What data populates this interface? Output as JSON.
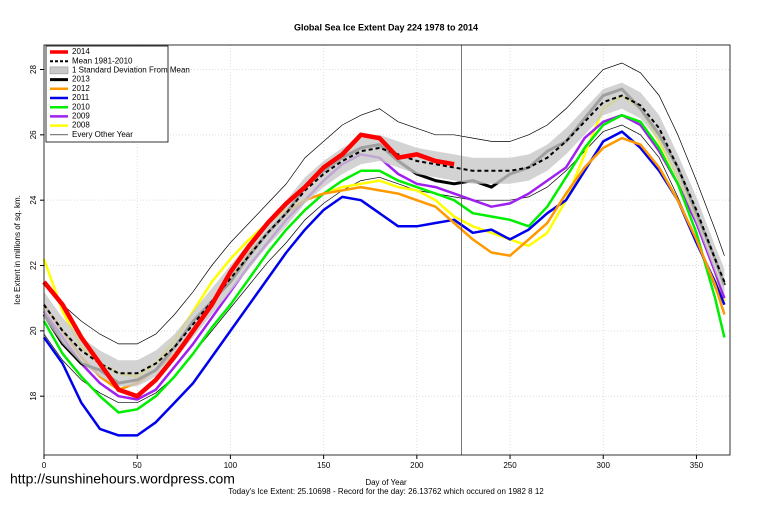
{
  "chart_data": {
    "type": "line",
    "title": "Global Sea Ice Extent Day 224 1978 to 2014",
    "x_label": "Day of Year",
    "y_label": "Ice Extent in millions of sq. km.",
    "caption": "Today's Ice Extent: 25.10698  - Record for the day: 26.13762 which occured on 1982 8 12",
    "watermark": "http://sunshinehours.wordpress.com",
    "marker_x": 224,
    "grid": true,
    "legend": "top-left",
    "xlim": [
      0,
      368
    ],
    "ylim": [
      16.2,
      28.75
    ],
    "xticks": [
      0,
      50,
      100,
      150,
      200,
      250,
      300,
      350
    ],
    "yticks": [
      18,
      20,
      22,
      24,
      26,
      28
    ],
    "x": [
      0,
      10,
      20,
      30,
      40,
      50,
      60,
      70,
      80,
      90,
      100,
      110,
      120,
      130,
      140,
      150,
      160,
      170,
      180,
      190,
      200,
      210,
      220,
      230,
      240,
      250,
      260,
      270,
      280,
      290,
      300,
      310,
      320,
      330,
      340,
      350,
      360,
      365
    ],
    "series": [
      {
        "name": "2014",
        "color": "#ff0000",
        "width": 4.5,
        "values": [
          21.5,
          20.8,
          19.8,
          19.0,
          18.2,
          18.0,
          18.5,
          19.2,
          20.0,
          20.8,
          21.8,
          22.6,
          23.3,
          23.9,
          24.4,
          25.0,
          25.4,
          26.0,
          25.9,
          25.3,
          25.4,
          25.2,
          25.1,
          null,
          null,
          null,
          null,
          null,
          null,
          null,
          null,
          null,
          null,
          null,
          null,
          null,
          null,
          null
        ]
      },
      {
        "name": "Mean 1981-2010",
        "color": "#000000",
        "width": 2,
        "dash": true,
        "values": [
          20.8,
          20.0,
          19.4,
          19.0,
          18.7,
          18.7,
          19.0,
          19.5,
          20.2,
          20.9,
          21.6,
          22.3,
          23.0,
          23.6,
          24.3,
          24.8,
          25.2,
          25.5,
          25.6,
          25.4,
          25.2,
          25.1,
          25.0,
          24.9,
          24.9,
          24.9,
          25.0,
          25.3,
          25.8,
          26.4,
          27.0,
          27.2,
          26.9,
          26.2,
          25.0,
          23.7,
          22.2,
          21.5
        ]
      },
      {
        "name": "1 Standard Deviation From Mean",
        "color": "#c8c8c8",
        "lower": [
          20.4,
          19.6,
          19.0,
          18.6,
          18.3,
          18.3,
          18.6,
          19.1,
          19.8,
          20.5,
          21.2,
          21.9,
          22.6,
          23.2,
          23.9,
          24.4,
          24.8,
          25.1,
          25.2,
          25.0,
          24.8,
          24.7,
          24.6,
          24.5,
          24.5,
          24.5,
          24.6,
          24.9,
          25.4,
          26.0,
          26.6,
          26.8,
          26.5,
          25.8,
          24.6,
          23.3,
          21.8,
          21.1
        ],
        "upper": [
          21.2,
          20.4,
          19.8,
          19.4,
          19.1,
          19.1,
          19.4,
          19.9,
          20.6,
          21.3,
          22.0,
          22.7,
          23.4,
          24.0,
          24.7,
          25.2,
          25.6,
          25.9,
          26.0,
          25.8,
          25.6,
          25.5,
          25.4,
          25.3,
          25.3,
          25.3,
          25.4,
          25.7,
          26.2,
          26.8,
          27.4,
          27.6,
          27.3,
          26.6,
          25.4,
          24.1,
          22.6,
          21.9
        ]
      },
      {
        "name": "2013",
        "color": "#000000",
        "width": 3,
        "values": [
          20.5,
          19.6,
          19.0,
          18.8,
          18.4,
          18.5,
          18.8,
          19.5,
          20.3,
          20.9,
          21.5,
          22.3,
          23.0,
          23.6,
          24.4,
          24.9,
          25.3,
          25.6,
          25.7,
          25.2,
          24.8,
          24.6,
          24.5,
          24.6,
          24.4,
          24.8,
          25.0,
          25.5,
          25.8,
          26.5,
          27.2,
          27.4,
          26.8,
          26.0,
          25.0,
          23.6,
          22.2,
          21.4
        ]
      },
      {
        "name": "2012",
        "color": "#ff9900",
        "width": 2.5,
        "values": [
          20.8,
          20.0,
          19.2,
          18.6,
          18.2,
          18.4,
          18.8,
          19.3,
          20.0,
          20.8,
          21.6,
          22.4,
          23.0,
          23.6,
          24.0,
          24.2,
          24.3,
          24.4,
          24.3,
          24.2,
          24.0,
          23.8,
          23.3,
          22.8,
          22.4,
          22.3,
          22.8,
          23.3,
          24.2,
          25.0,
          25.6,
          25.9,
          25.7,
          25.0,
          24.0,
          22.8,
          21.4,
          20.5
        ]
      },
      {
        "name": "2011",
        "color": "#0000ee",
        "width": 2.5,
        "values": [
          19.8,
          19.0,
          17.8,
          17.0,
          16.8,
          16.8,
          17.2,
          17.8,
          18.4,
          19.2,
          20.0,
          20.8,
          21.6,
          22.4,
          23.1,
          23.7,
          24.1,
          24.0,
          23.6,
          23.2,
          23.2,
          23.3,
          23.4,
          23.0,
          23.1,
          22.8,
          23.1,
          23.6,
          24.0,
          24.9,
          25.8,
          26.1,
          25.6,
          24.9,
          24.0,
          22.7,
          21.5,
          20.8
        ]
      },
      {
        "name": "2010",
        "color": "#00ee00",
        "width": 2.5,
        "values": [
          20.3,
          19.3,
          18.6,
          18.0,
          17.5,
          17.6,
          18.0,
          18.6,
          19.3,
          20.1,
          20.8,
          21.6,
          22.4,
          23.1,
          23.7,
          24.2,
          24.6,
          24.9,
          24.9,
          24.6,
          24.4,
          24.2,
          24.0,
          23.6,
          23.5,
          23.4,
          23.2,
          23.8,
          24.7,
          25.6,
          26.3,
          26.6,
          26.4,
          25.6,
          24.5,
          23.0,
          21.0,
          19.8
        ]
      },
      {
        "name": "2009",
        "color": "#a020f0",
        "width": 2.5,
        "values": [
          20.6,
          19.8,
          19.0,
          18.4,
          18.0,
          17.9,
          18.2,
          18.9,
          19.6,
          20.4,
          21.2,
          22.0,
          22.7,
          23.4,
          24.0,
          24.6,
          25.1,
          25.4,
          25.3,
          24.8,
          24.5,
          24.4,
          24.2,
          24.0,
          23.8,
          23.9,
          24.2,
          24.6,
          25.0,
          25.9,
          26.4,
          26.6,
          26.3,
          25.5,
          24.5,
          23.3,
          21.8,
          21.0
        ]
      },
      {
        "name": "2008",
        "color": "#ffff00",
        "width": 2.5,
        "values": [
          22.2,
          20.6,
          19.5,
          19.0,
          18.7,
          18.6,
          19.0,
          19.7,
          20.6,
          21.5,
          22.2,
          22.8,
          23.3,
          23.7,
          24.0,
          24.2,
          24.4,
          24.5,
          24.6,
          24.4,
          24.3,
          24.0,
          23.5,
          23.2,
          23.0,
          22.8,
          22.6,
          23.0,
          24.0,
          25.4,
          26.8,
          27.2,
          26.8,
          25.8,
          24.7,
          23.4,
          21.8,
          20.9
        ]
      },
      {
        "name": "Every Other Year",
        "color": "#000000",
        "width": 0.7,
        "lines": [
          [
            21.5,
            20.8,
            20.3,
            19.9,
            19.6,
            19.6,
            19.9,
            20.5,
            21.2,
            22.0,
            22.7,
            23.3,
            23.9,
            24.5,
            25.3,
            25.8,
            26.3,
            26.6,
            26.8,
            26.4,
            26.2,
            26.0,
            26.0,
            25.9,
            25.8,
            25.8,
            26.0,
            26.3,
            26.8,
            27.4,
            28.0,
            28.2,
            27.9,
            27.2,
            26.0,
            24.6,
            23.1,
            22.3
          ],
          [
            19.9,
            19.1,
            18.5,
            18.1,
            17.8,
            17.8,
            18.1,
            18.6,
            19.3,
            20.0,
            20.7,
            21.4,
            22.1,
            22.7,
            23.4,
            23.9,
            24.3,
            24.6,
            24.7,
            24.5,
            24.3,
            24.2,
            24.1,
            24.0,
            24.0,
            24.0,
            24.1,
            24.4,
            24.9,
            25.5,
            26.1,
            26.3,
            26.0,
            25.3,
            24.1,
            22.8,
            21.3,
            20.6
          ]
        ]
      }
    ]
  }
}
